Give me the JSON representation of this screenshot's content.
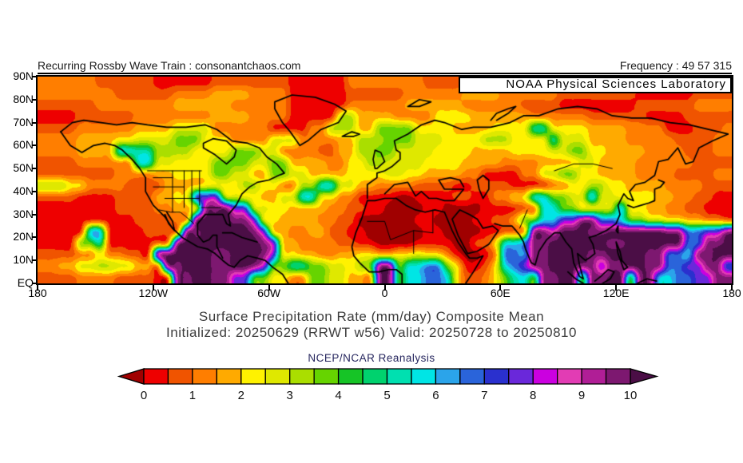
{
  "header": {
    "title_left": "Recurring Rossby Wave Train : consonantchaos.com",
    "frequency_label": "Frequency : 49 57 315",
    "noaa_box": "NOAA Physical Sciences Laboratory"
  },
  "caption": {
    "line1": "Surface Precipitation Rate (mm/day) Composite Mean",
    "line2": "Initialized: 20250629 (RRWT w56) Valid: 20250728 to 20250810",
    "source": "NCEP/NCAR Reanalysis"
  },
  "chart_data": {
    "type": "heatmap",
    "title": "Surface Precipitation Rate (mm/day) Composite Mean",
    "units": "mm/day",
    "x_ticks": [
      "180",
      "120W",
      "60W",
      "0",
      "60E",
      "120E",
      "180"
    ],
    "y_ticks": [
      "90N",
      "80N",
      "70N",
      "60N",
      "50N",
      "40N",
      "30N",
      "20N",
      "10N",
      "EQ"
    ],
    "lon_range": [
      -180,
      180
    ],
    "lat_range": [
      0,
      90
    ],
    "colorbar": {
      "labels": [
        "0",
        "1",
        "2",
        "3",
        "4",
        "5",
        "6",
        "7",
        "8",
        "9",
        "10"
      ],
      "arrow_ends": true,
      "palette": [
        "#a00000",
        "#ee0000",
        "#f05400",
        "#ff7e00",
        "#ffaa00",
        "#fff200",
        "#dfe800",
        "#aade00",
        "#66d400",
        "#16c426",
        "#00d26e",
        "#00e0b0",
        "#00e5e5",
        "#2ba4ea",
        "#2a64da",
        "#2a30ce",
        "#6a28da",
        "#cb00e0",
        "#e23cb4",
        "#b01e96",
        "#7d1870",
        "#4b0e46"
      ]
    },
    "grid_key": "0123456789ABCDEFGHIJKL",
    "grid": [
      "333333222222111111222222221111113333333322222211111111112222222211111111",
      "333333332222223333444433331111112222223333334444333333222222221111112222",
      "222222333333334444443333331111113333334444443333332222111111112222223333",
      "111122222233333333444433331111177444433335555444444333333222222111122222",
      "222233333344446666333333111133777448888555544445555BB5555444433331112223",
      "33334444556666888555333366633334477788866655557775555B666444433333222233",
      "33334444CCBB777755558886633332244778866665555444455556688554444333322233",
      "2222333333CC665555888866884444335577666655554444333344446644443333332222",
      "222222223333445555886644886644445555665544443311113366885544443333222233",
      "77755333322224444555577553377CC66443333222211222211113355775544443333222",
      "2222111122224455GGH66554466CC5533111100111122113355CC8866D66555544332211",
      "11111111222233445KKLGG665544443322110000110000111122CC885566D55443322111",
      "1111111111222233LLLLKKG55444433220000001100001122488CCGGKKEEC88665544332",
      "11111DD11112222KKLLLLLKG443344221100000011000011223KKILLLKKLLLLLLKKEEGGK",
      "111188B1111122KLLLLLLLLKH44333322110000111100225CCEKKLLLLLLKKLLLLLLEEKKL",
      "222233533221KLLLLLKKLLLKG55443344554455655310013EEDKKLLLLKKLLLLKKEECKKLL",
      "3344667766442KKLLLKKLLKH88BB8866578KK8CCEE851125CEGKKLLLKKGKKLLKKEEGGKKE",
      "22223333222211KKLLKKGG8855338866443KK8CCEEC522358BC8KKLL8KKLL8KKCCEEGGKK"
    ],
    "coastlines": [
      [
        [
          -168,
          66
        ],
        [
          -163,
          60
        ],
        [
          -157,
          57
        ],
        [
          -151,
          60
        ],
        [
          -145,
          61
        ],
        [
          -140,
          60
        ],
        [
          -136,
          58
        ],
        [
          -131,
          54
        ],
        [
          -127,
          50
        ],
        [
          -124,
          46
        ],
        [
          -124,
          40
        ],
        [
          -120,
          34
        ],
        [
          -114,
          29
        ],
        [
          -110,
          24
        ],
        [
          -105,
          20
        ],
        [
          -97,
          16
        ],
        [
          -92,
          15
        ],
        [
          -88,
          13
        ],
        [
          -84,
          10
        ],
        [
          -81,
          8
        ],
        [
          -78,
          7
        ],
        [
          -75,
          10
        ],
        [
          -71,
          12
        ],
        [
          -66,
          11
        ],
        [
          -62,
          10
        ],
        [
          -58,
          7
        ],
        [
          -53,
          4
        ],
        [
          -50,
          0
        ]
      ],
      [
        [
          -97,
          26
        ],
        [
          -97,
          21
        ],
        [
          -94,
          18
        ],
        [
          -91,
          19
        ],
        [
          -89,
          21
        ],
        [
          -87,
          21
        ],
        [
          -87,
          16
        ],
        [
          -84,
          11
        ]
      ],
      [
        [
          -97,
          26
        ],
        [
          -93,
          30
        ],
        [
          -88,
          30
        ],
        [
          -84,
          30
        ],
        [
          -82,
          26
        ],
        [
          -80,
          25
        ],
        [
          -81,
          30
        ],
        [
          -77,
          34
        ],
        [
          -74,
          39
        ],
        [
          -70,
          42
        ],
        [
          -66,
          44
        ],
        [
          -60,
          45
        ],
        [
          -55,
          47
        ],
        [
          -52,
          48
        ],
        [
          -56,
          52
        ],
        [
          -61,
          55
        ],
        [
          -65,
          59
        ],
        [
          -71,
          61
        ],
        [
          -79,
          62
        ],
        [
          -87,
          67
        ],
        [
          -93,
          69
        ],
        [
          -103,
          68
        ],
        [
          -113,
          68
        ],
        [
          -123,
          69
        ],
        [
          -131,
          70
        ],
        [
          -139,
          69
        ],
        [
          -147,
          70
        ],
        [
          -156,
          71
        ],
        [
          -162,
          70
        ],
        [
          -168,
          66
        ]
      ],
      [
        [
          -94,
          59
        ],
        [
          -88,
          56
        ],
        [
          -82,
          52
        ],
        [
          -78,
          55
        ],
        [
          -77,
          58
        ],
        [
          -82,
          62
        ],
        [
          -89,
          63
        ],
        [
          -94,
          61
        ],
        [
          -94,
          59
        ]
      ],
      [
        [
          -57,
          76
        ],
        [
          -53,
          70
        ],
        [
          -49,
          66
        ],
        [
          -44,
          60
        ],
        [
          -40,
          62
        ],
        [
          -33,
          67
        ],
        [
          -24,
          70
        ],
        [
          -20,
          75
        ],
        [
          -26,
          78
        ],
        [
          -36,
          81
        ],
        [
          -48,
          82
        ],
        [
          -57,
          79
        ],
        [
          -57,
          76
        ]
      ],
      [
        [
          -22,
          64
        ],
        [
          -16,
          64
        ],
        [
          -13,
          65
        ],
        [
          -17,
          66
        ],
        [
          -22,
          64
        ]
      ],
      [
        [
          -5,
          50
        ],
        [
          -6,
          54
        ],
        [
          -5,
          58
        ],
        [
          -2,
          57
        ],
        [
          0,
          53
        ],
        [
          -4,
          50
        ],
        [
          -5,
          50
        ]
      ],
      [
        [
          -9,
          37
        ],
        [
          -9,
          43
        ],
        [
          -4,
          46
        ],
        [
          -4,
          48
        ],
        [
          0,
          49
        ],
        [
          4,
          51
        ],
        [
          8,
          54
        ],
        [
          8,
          57
        ],
        [
          6,
          58
        ],
        [
          5,
          62
        ],
        [
          12,
          65
        ],
        [
          19,
          69
        ],
        [
          26,
          71
        ],
        [
          31,
          70
        ],
        [
          40,
          67
        ],
        [
          46,
          68
        ],
        [
          55,
          68
        ],
        [
          65,
          70
        ],
        [
          72,
          73
        ],
        [
          80,
          73
        ],
        [
          90,
          76
        ],
        [
          100,
          77
        ],
        [
          110,
          76
        ],
        [
          118,
          73
        ],
        [
          128,
          72
        ],
        [
          138,
          72
        ],
        [
          148,
          70
        ],
        [
          158,
          69
        ],
        [
          168,
          67
        ],
        [
          178,
          65
        ]
      ],
      [
        [
          -9,
          36
        ],
        [
          -5,
          36
        ],
        [
          0,
          37
        ],
        [
          6,
          37
        ],
        [
          11,
          34
        ],
        [
          16,
          32
        ],
        [
          21,
          31
        ],
        [
          26,
          32
        ],
        [
          31,
          31
        ]
      ],
      [
        [
          0,
          39
        ],
        [
          5,
          43
        ],
        [
          12,
          44
        ],
        [
          16,
          38
        ],
        [
          19,
          40
        ],
        [
          23,
          37
        ],
        [
          27,
          37
        ],
        [
          31,
          36
        ],
        [
          36,
          36
        ],
        [
          41,
          41
        ],
        [
          36,
          41
        ],
        [
          31,
          41
        ],
        [
          28,
          45
        ],
        [
          34,
          46
        ],
        [
          39,
          45
        ],
        [
          41,
          42
        ]
      ],
      [
        [
          -9,
          36
        ],
        [
          -12,
          28
        ],
        [
          -15,
          22
        ],
        [
          -17,
          16
        ],
        [
          -16,
          12
        ],
        [
          -13,
          9
        ],
        [
          -8,
          5
        ],
        [
          -3,
          5
        ],
        [
          2,
          6
        ],
        [
          6,
          6
        ],
        [
          9,
          4
        ],
        [
          9,
          0
        ]
      ],
      [
        [
          31,
          31
        ],
        [
          32,
          29
        ],
        [
          35,
          23
        ],
        [
          38,
          18
        ],
        [
          42,
          13
        ],
        [
          44,
          11
        ],
        [
          48,
          11
        ],
        [
          51,
          12
        ],
        [
          46,
          5
        ],
        [
          42,
          0
        ]
      ],
      [
        [
          35,
          28
        ],
        [
          38,
          21
        ],
        [
          43,
          13
        ],
        [
          48,
          14
        ],
        [
          54,
          17
        ],
        [
          59,
          23
        ],
        [
          56,
          25
        ],
        [
          51,
          24
        ],
        [
          48,
          28
        ],
        [
          44,
          30
        ],
        [
          39,
          32
        ],
        [
          35,
          28
        ]
      ],
      [
        [
          51,
          47
        ],
        [
          54,
          45
        ],
        [
          54,
          41
        ],
        [
          51,
          37
        ],
        [
          49,
          41
        ],
        [
          48,
          45
        ],
        [
          51,
          47
        ]
      ],
      [
        [
          57,
          26
        ],
        [
          61,
          25
        ],
        [
          66,
          25
        ],
        [
          70,
          21
        ],
        [
          72,
          18
        ],
        [
          73,
          15
        ],
        [
          76,
          9
        ],
        [
          78,
          8
        ],
        [
          80,
          14
        ],
        [
          84,
          19
        ],
        [
          88,
          22
        ],
        [
          91,
          22
        ],
        [
          94,
          18
        ],
        [
          97,
          15
        ],
        [
          98,
          9
        ],
        [
          101,
          3
        ],
        [
          103,
          2
        ],
        [
          101,
          8
        ],
        [
          100,
          13
        ],
        [
          104,
          10
        ],
        [
          106,
          11
        ],
        [
          109,
          13
        ],
        [
          108,
          17
        ],
        [
          106,
          20
        ],
        [
          110,
          21
        ],
        [
          115,
          23
        ],
        [
          120,
          26
        ],
        [
          122,
          30
        ],
        [
          121,
          34
        ],
        [
          124,
          39
        ],
        [
          126,
          37
        ],
        [
          129,
          36
        ],
        [
          127,
          40
        ],
        [
          130,
          43
        ],
        [
          135,
          44
        ],
        [
          140,
          47
        ],
        [
          142,
          53
        ],
        [
          147,
          54
        ],
        [
          152,
          59
        ],
        [
          156,
          52
        ],
        [
          160,
          53
        ],
        [
          163,
          59
        ],
        [
          170,
          62
        ],
        [
          178,
          65
        ]
      ],
      [
        [
          126,
          34
        ],
        [
          129,
          33
        ],
        [
          133,
          34
        ],
        [
          137,
          35
        ],
        [
          140,
          36
        ],
        [
          140,
          41
        ],
        [
          143,
          42
        ],
        [
          145,
          44
        ],
        [
          142,
          45
        ]
      ],
      [
        [
          121,
          25
        ],
        [
          121,
          22
        ],
        [
          120,
          23
        ],
        [
          121,
          25
        ]
      ],
      [
        [
          120,
          18
        ],
        [
          122,
          14
        ],
        [
          123,
          10
        ],
        [
          126,
          7
        ],
        [
          124,
          6
        ],
        [
          121,
          13
        ],
        [
          120,
          18
        ]
      ],
      [
        [
          95,
          5
        ],
        [
          99,
          2
        ],
        [
          103,
          0
        ]
      ],
      [
        [
          109,
          1
        ],
        [
          112,
          3
        ],
        [
          116,
          6
        ],
        [
          119,
          5
        ],
        [
          117,
          2
        ],
        [
          113,
          0
        ]
      ],
      [
        [
          131,
          0
        ],
        [
          136,
          2
        ],
        [
          141,
          1
        ]
      ],
      [
        [
          -84,
          22
        ],
        [
          -79,
          22
        ],
        [
          -74,
          20
        ],
        [
          -70,
          19
        ],
        [
          -66,
          18
        ]
      ],
      [
        [
          55,
          71
        ],
        [
          58,
          74
        ],
        [
          64,
          76
        ],
        [
          68,
          77
        ],
        [
          64,
          74
        ],
        [
          58,
          71
        ]
      ],
      [
        [
          12,
          77
        ],
        [
          18,
          80
        ],
        [
          24,
          79
        ],
        [
          18,
          77
        ],
        [
          12,
          77
        ]
      ],
      [
        [
          -114,
          30
        ],
        [
          -112,
          26
        ],
        [
          -109,
          23
        ],
        [
          -110,
          27
        ],
        [
          -113,
          31
        ]
      ]
    ],
    "borders": [
      [
        [
          -123,
          49
        ],
        [
          -95,
          49
        ]
      ],
      [
        [
          -117,
          32
        ],
        [
          -111,
          31
        ],
        [
          -106,
          31
        ],
        [
          -103,
          29
        ],
        [
          -99,
          26
        ]
      ],
      [
        [
          -110,
          49
        ],
        [
          -110,
          31
        ]
      ],
      [
        [
          -104,
          49
        ],
        [
          -104,
          33
        ]
      ],
      [
        [
          -100,
          49
        ],
        [
          -100,
          27
        ]
      ],
      [
        [
          -96,
          49
        ],
        [
          -96,
          34
        ]
      ],
      [
        [
          -120,
          42
        ],
        [
          -104,
          42
        ]
      ],
      [
        [
          -114,
          37
        ],
        [
          -96,
          37
        ]
      ],
      [
        [
          -120,
          46
        ],
        [
          -110,
          46
        ]
      ],
      [
        [
          -95,
          33
        ],
        [
          -85,
          33
        ]
      ],
      [
        [
          -9,
          27
        ],
        [
          0,
          27
        ],
        [
          3,
          19
        ],
        [
          15,
          23
        ],
        [
          25,
          22
        ]
      ],
      [
        [
          25,
          22
        ],
        [
          25,
          32
        ]
      ],
      [
        [
          15,
          23
        ],
        [
          15,
          13
        ]
      ],
      [
        [
          70,
          24
        ],
        [
          74,
          32
        ]
      ],
      [
        [
          88,
          49
        ],
        [
          98,
          52
        ],
        [
          108,
          52
        ],
        [
          118,
          50
        ]
      ]
    ]
  }
}
